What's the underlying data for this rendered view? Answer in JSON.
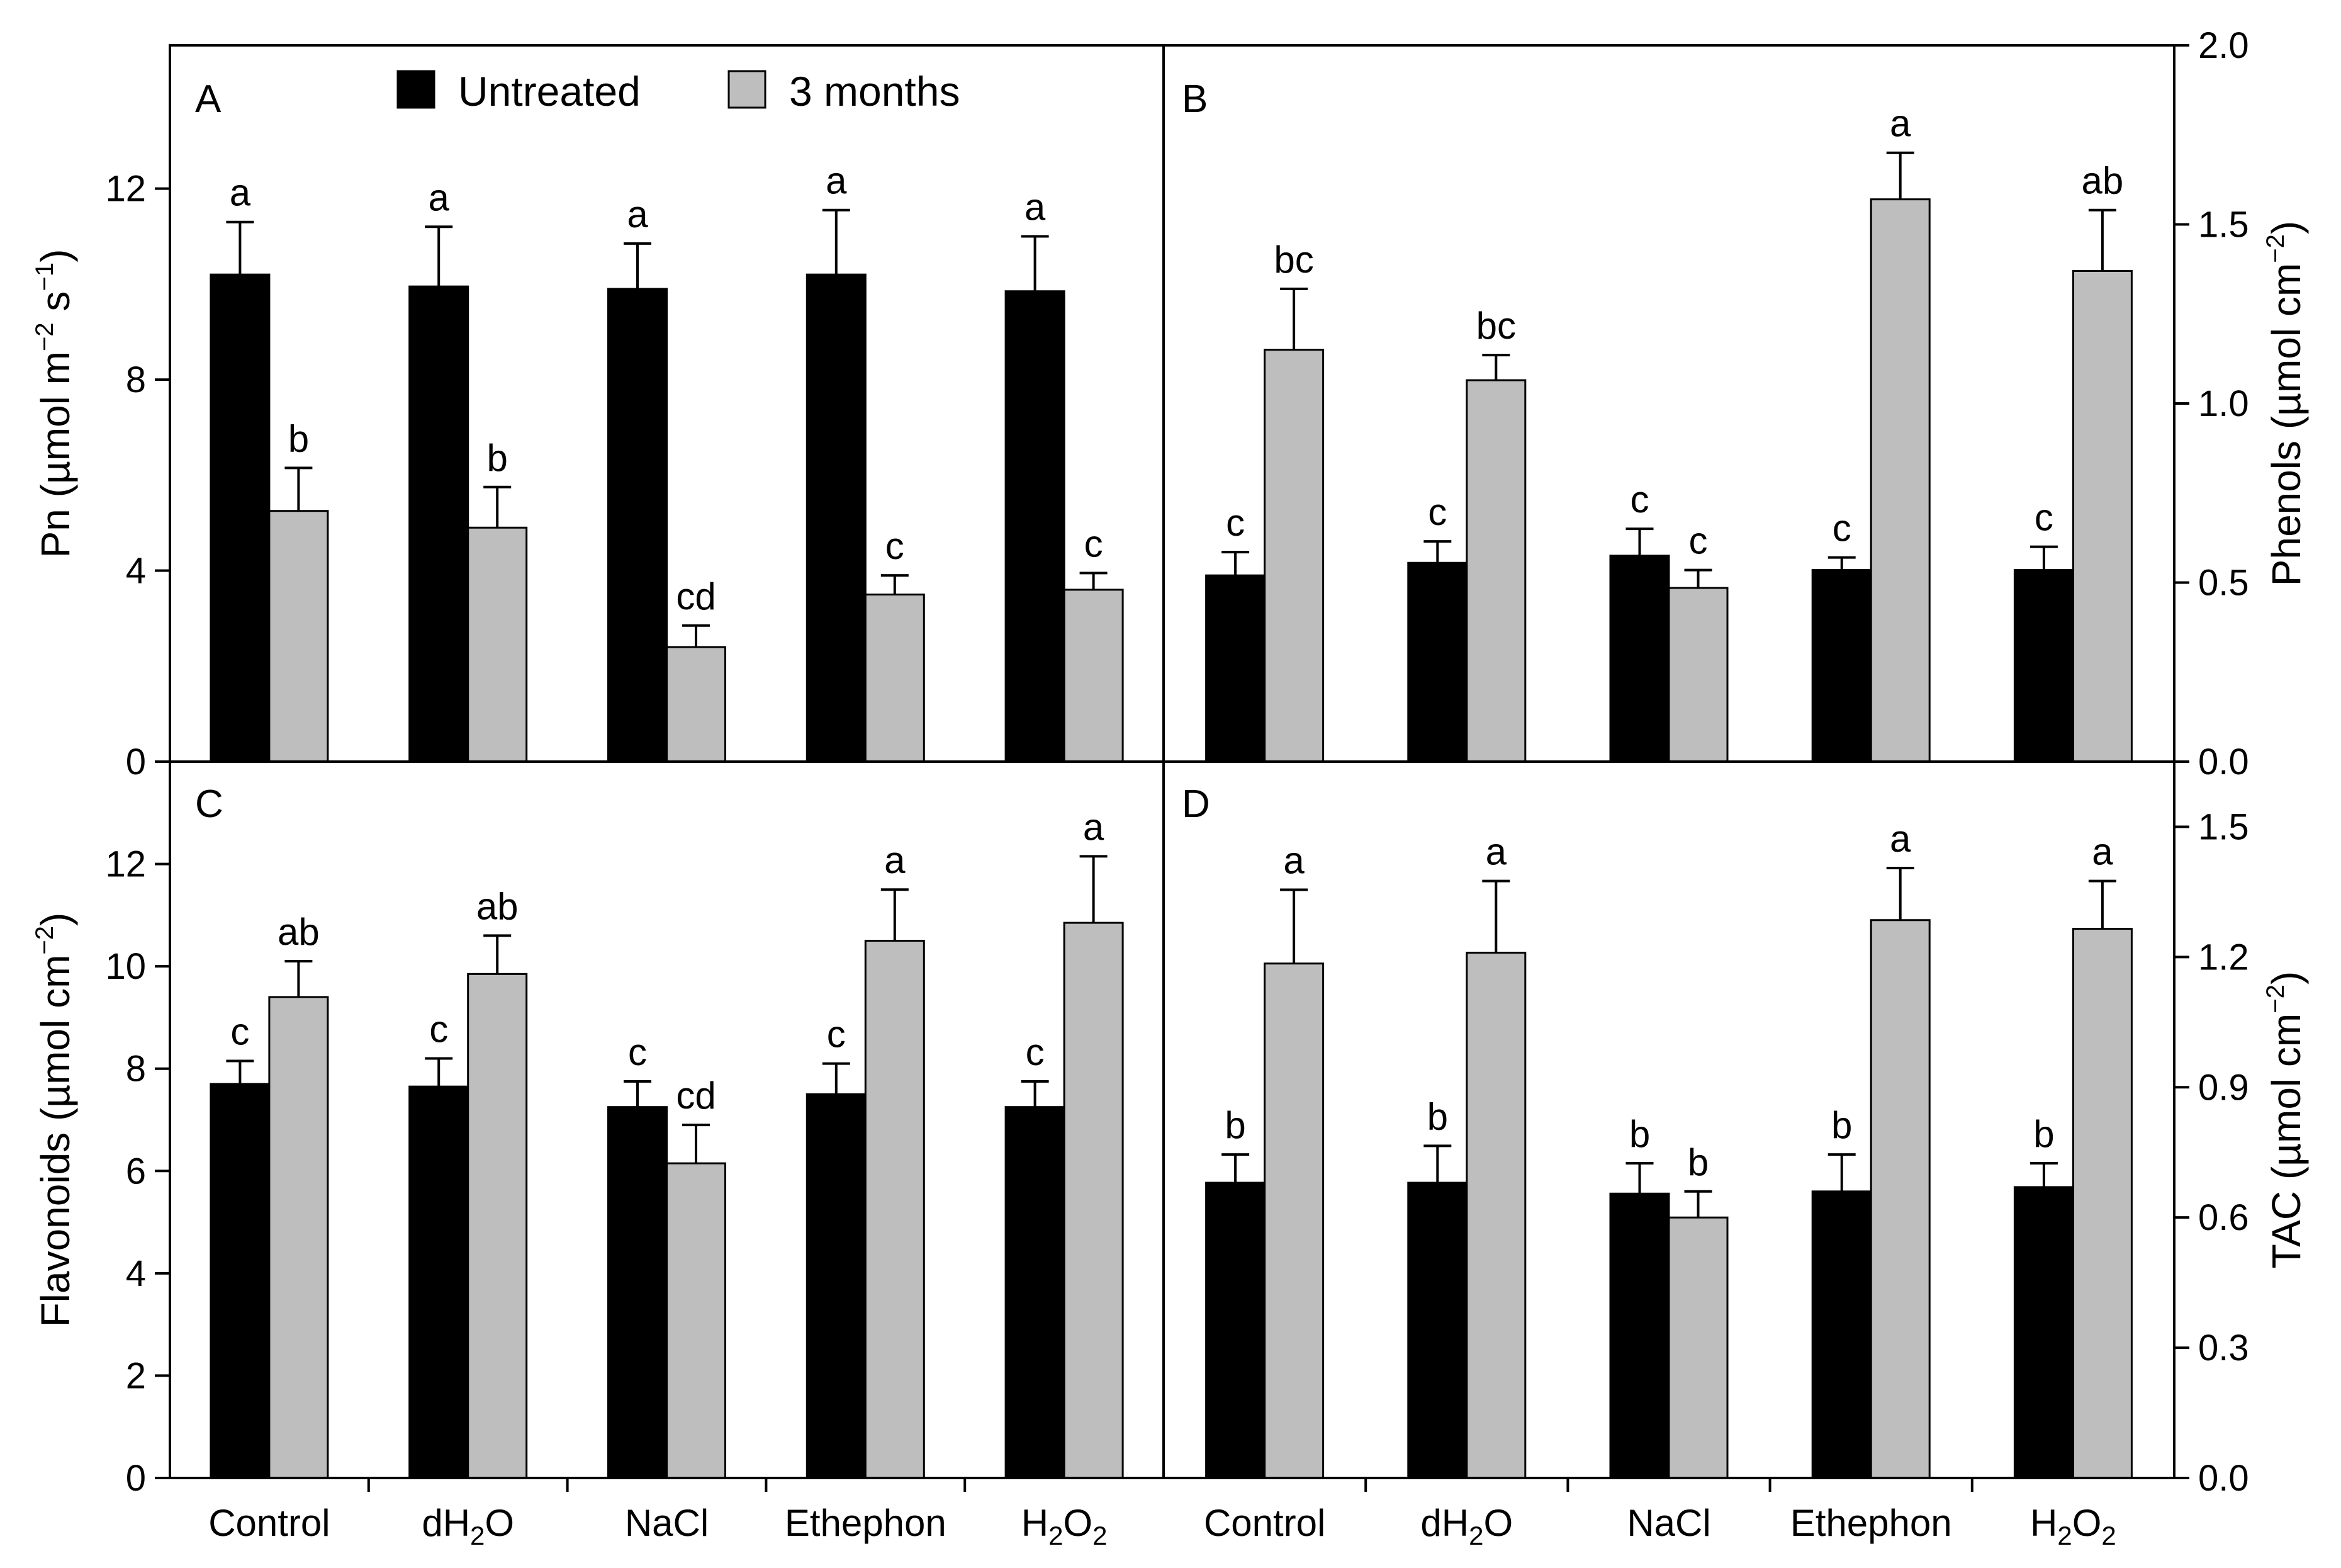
{
  "colors": {
    "untreated": "#000000",
    "three_months": "#bebebe",
    "axis": "#000000"
  },
  "legend": {
    "items": [
      {
        "key": "untreated",
        "label": "Untreated"
      },
      {
        "key": "three_months",
        "label": "3 months"
      }
    ]
  },
  "categories": [
    {
      "text": "Control"
    },
    {
      "pre": "dH",
      "sub": "2",
      "post": "O"
    },
    {
      "text": "NaCl"
    },
    {
      "text": "Ethephon"
    },
    {
      "pre": "H",
      "sub": "2",
      "post": "O",
      "sub2": "2"
    }
  ],
  "chart_data": [
    {
      "panel": "A",
      "type": "bar",
      "ylabel": {
        "text": "Pn (µmol m",
        "sup1": "−2",
        "mid": " s",
        "sup2": "−1",
        "end": ")"
      },
      "ylim": [
        0,
        15
      ],
      "yticks": [
        0,
        4,
        8,
        12
      ],
      "tick_decimals": 0,
      "series": [
        {
          "name": "Untreated",
          "values": [
            10.2,
            9.95,
            9.9,
            10.2,
            9.85
          ],
          "errors": [
            1.1,
            1.25,
            0.95,
            1.35,
            1.15
          ],
          "letters": [
            "a",
            "a",
            "a",
            "a",
            "a"
          ]
        },
        {
          "name": "3 months",
          "values": [
            5.25,
            4.9,
            2.4,
            3.5,
            3.6
          ],
          "errors": [
            0.9,
            0.85,
            0.45,
            0.4,
            0.35
          ],
          "letters": [
            "b",
            "b",
            "cd",
            "c",
            "c"
          ]
        }
      ]
    },
    {
      "panel": "B",
      "type": "bar",
      "ylabel": {
        "text": "Phenols (µmol cm",
        "sup1": "−2",
        "end": ")"
      },
      "ylim": [
        0,
        2.0
      ],
      "yticks": [
        0.0,
        0.5,
        1.0,
        1.5,
        2.0
      ],
      "tick_decimals": 1,
      "series": [
        {
          "name": "Untreated",
          "values": [
            0.52,
            0.555,
            0.575,
            0.535,
            0.535
          ],
          "errors": [
            0.065,
            0.06,
            0.075,
            0.035,
            0.065
          ],
          "letters": [
            "c",
            "c",
            "c",
            "c",
            "c"
          ]
        },
        {
          "name": "3 months",
          "values": [
            1.15,
            1.065,
            0.485,
            1.57,
            1.37
          ],
          "errors": [
            0.17,
            0.07,
            0.05,
            0.13,
            0.17
          ],
          "letters": [
            "bc",
            "bc",
            "c",
            "a",
            "ab"
          ]
        }
      ]
    },
    {
      "panel": "C",
      "type": "bar",
      "ylabel": {
        "text": "Flavonoids (µmol cm",
        "sup1": "−2",
        "end": ")"
      },
      "ylim": [
        0,
        14
      ],
      "yticks": [
        0,
        2,
        4,
        6,
        8,
        10,
        12
      ],
      "tick_decimals": 0,
      "series": [
        {
          "name": "Untreated",
          "values": [
            7.7,
            7.65,
            7.25,
            7.5,
            7.25
          ],
          "errors": [
            0.45,
            0.55,
            0.5,
            0.6,
            0.5
          ],
          "letters": [
            "c",
            "c",
            "c",
            "c",
            "c"
          ]
        },
        {
          "name": "3 months",
          "values": [
            9.4,
            9.85,
            6.15,
            10.5,
            10.85
          ],
          "errors": [
            0.7,
            0.75,
            0.75,
            1.0,
            1.3
          ],
          "letters": [
            "ab",
            "ab",
            "cd",
            "a",
            "a"
          ]
        }
      ]
    },
    {
      "panel": "D",
      "type": "bar",
      "ylabel": {
        "text": "TAC (µmol cm",
        "sup1": "−2",
        "end": ")"
      },
      "ylim": [
        0,
        1.65
      ],
      "yticks": [
        0.0,
        0.3,
        0.6,
        0.9,
        1.2,
        1.5
      ],
      "tick_decimals": 1,
      "series": [
        {
          "name": "Untreated",
          "values": [
            0.68,
            0.68,
            0.655,
            0.66,
            0.67
          ],
          "errors": [
            0.065,
            0.085,
            0.07,
            0.085,
            0.055
          ],
          "letters": [
            "b",
            "b",
            "b",
            "b",
            "b"
          ]
        },
        {
          "name": "3 months",
          "values": [
            1.185,
            1.21,
            0.6,
            1.285,
            1.265
          ],
          "errors": [
            0.17,
            0.165,
            0.06,
            0.12,
            0.11
          ],
          "letters": [
            "a",
            "a",
            "b",
            "a",
            "a"
          ]
        }
      ]
    }
  ]
}
